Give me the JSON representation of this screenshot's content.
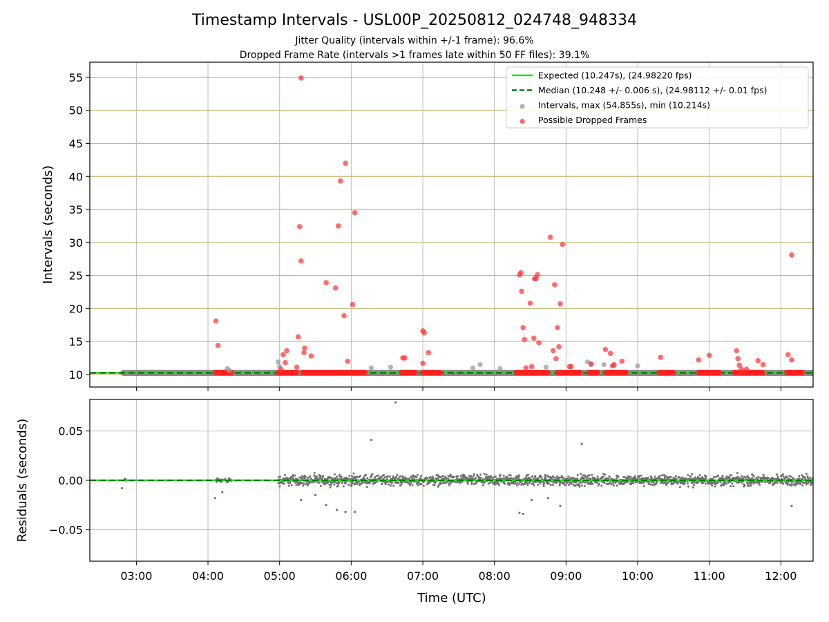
{
  "chart_data": [
    {
      "type": "scatter",
      "title": "Timestamp Intervals - USL00P_20250812_024748_948334",
      "subtitle_lines": [
        "Jitter Quality (intervals within +/-1 frame): 96.6%",
        "Dropped Frame Rate (intervals >1 frames late within 50 FF files): 39.1%"
      ],
      "ylabel": "Intervals (seconds)",
      "xlim": [
        2.35,
        12.45
      ],
      "ylim": [
        8.1,
        57.3
      ],
      "yticks": [
        10,
        15,
        20,
        25,
        30,
        35,
        40,
        45,
        50,
        55
      ],
      "ytick_labels": [
        "10",
        "15",
        "20",
        "25",
        "30",
        "35",
        "40",
        "45",
        "50",
        "55"
      ],
      "grid": "on",
      "legend_position": "top-right",
      "expected_interval": 10.247,
      "median_interval": 10.248,
      "legend": [
        {
          "label": "Expected (10.247s), (24.98220 fps)",
          "style": "solid-line",
          "color": "#22dd22"
        },
        {
          "label": "Median (10.248 +/- 0.006 s), (24.98112 +/- 0.01 fps)",
          "style": "dashed-line",
          "color": "#117711"
        },
        {
          "label": "Intervals, max (54.855s), min (10.214s)",
          "style": "marker",
          "color": "#999999"
        },
        {
          "label": "Possible Dropped Frames",
          "style": "marker",
          "color": "#ff3333"
        }
      ],
      "series": [
        {
          "name": "Intervals, max (54.855s), min (10.214s)",
          "x": [
            4.27,
            4.3,
            4.98,
            5.0,
            6.28,
            6.55,
            7.7,
            7.8,
            8.08,
            8.72,
            9.3,
            9.35,
            9.53,
            10.0
          ],
          "y": [
            10.9,
            10.6,
            11.9,
            11.2,
            11.0,
            11.1,
            11.0,
            11.5,
            10.9,
            11.1,
            11.9,
            11.5,
            11.5,
            11.3
          ]
        },
        {
          "name": "Possible Dropped Frames",
          "x": [
            4.11,
            4.14,
            5.02,
            5.05,
            5.08,
            5.1,
            5.24,
            5.26,
            5.28,
            5.3,
            5.35,
            5.44,
            5.3,
            5.34,
            5.65,
            5.78,
            5.82,
            5.85,
            5.9,
            5.92,
            5.95,
            6.02,
            6.05,
            6.72,
            6.75,
            7.0,
            7.02,
            7.08,
            7.0,
            8.35,
            8.37,
            8.38,
            8.4,
            8.42,
            8.44,
            8.5,
            8.52,
            8.55,
            8.56,
            8.58,
            8.6,
            8.62,
            8.78,
            8.82,
            8.84,
            8.86,
            8.88,
            8.9,
            8.92,
            8.95,
            9.05,
            9.07,
            9.35,
            9.55,
            9.62,
            9.65,
            9.67,
            9.78,
            10.32,
            10.85,
            11.0,
            11.38,
            11.4,
            11.42,
            11.45,
            11.52,
            11.68,
            11.75,
            12.1,
            12.15,
            12.15
          ],
          "y": [
            18.1,
            14.4,
            10.8,
            13.0,
            11.8,
            13.6,
            11.1,
            15.7,
            32.4,
            27.2,
            14.0,
            12.8,
            54.9,
            13.3,
            23.9,
            23.1,
            32.5,
            39.3,
            18.9,
            42.0,
            12.0,
            20.6,
            34.5,
            12.5,
            12.5,
            16.6,
            16.3,
            13.3,
            11.7,
            25.1,
            25.4,
            22.6,
            17.1,
            15.3,
            11.0,
            20.8,
            11.2,
            15.5,
            24.5,
            24.5,
            25.1,
            14.8,
            30.8,
            13.6,
            23.6,
            12.4,
            17.1,
            14.2,
            20.7,
            29.7,
            11.2,
            11.2,
            11.6,
            13.8,
            13.2,
            11.3,
            11.5,
            12.0,
            12.6,
            12.2,
            12.9,
            13.6,
            12.4,
            11.4,
            10.8,
            10.8,
            12.1,
            11.5,
            13.0,
            28.1,
            12.2
          ],
          "clusters": [
            [
              4.1,
              4.33
            ],
            [
              4.98,
              5.24
            ],
            [
              5.32,
              5.97
            ],
            [
              6.0,
              6.2
            ],
            [
              6.7,
              6.9
            ],
            [
              7.0,
              7.25
            ],
            [
              8.3,
              8.65
            ],
            [
              8.66,
              8.75
            ],
            [
              8.88,
              9.2
            ],
            [
              9.32,
              9.45
            ],
            [
              9.55,
              9.85
            ],
            [
              10.3,
              10.5
            ],
            [
              10.85,
              11.15
            ],
            [
              11.35,
              11.75
            ],
            [
              12.08,
              12.3
            ]
          ],
          "cluster_y": 10.3
        }
      ]
    },
    {
      "type": "scatter",
      "xlabel": "Time (UTC)",
      "ylabel": "Residuals (seconds)",
      "xlim": [
        2.35,
        12.45
      ],
      "ylim": [
        -0.082,
        0.082
      ],
      "xticks": [
        3,
        4,
        5,
        6,
        7,
        8,
        9,
        10,
        11,
        12
      ],
      "xtick_labels": [
        "03:00",
        "04:00",
        "05:00",
        "06:00",
        "07:00",
        "08:00",
        "09:00",
        "10:00",
        "11:00",
        "12:00"
      ],
      "yticks": [
        0.05,
        0.0,
        -0.05
      ],
      "ytick_labels": [
        "0.05",
        "0.00",
        "−0.05"
      ],
      "grid": "on",
      "reference_line": 0.0,
      "series": [
        {
          "name": "residuals",
          "dense_segments": [
            {
              "x": [
                2.82,
                2.86
              ],
              "spread": 0.003
            },
            {
              "x": [
                4.1,
                4.33
              ],
              "spread": 0.004
            },
            {
              "x": [
                4.98,
                12.45
              ],
              "spread": 0.008
            }
          ],
          "outliers_x": [
            2.8,
            4.1,
            4.2,
            5.3,
            5.5,
            5.65,
            5.8,
            5.92,
            6.05,
            6.28,
            6.62,
            8.35,
            8.4,
            8.52,
            8.75,
            8.92,
            9.22,
            12.15
          ],
          "outliers_y": [
            -0.008,
            -0.018,
            -0.012,
            -0.02,
            -0.015,
            -0.025,
            -0.03,
            -0.032,
            -0.032,
            0.041,
            0.079,
            -0.033,
            -0.034,
            -0.02,
            -0.018,
            -0.026,
            0.037,
            -0.026
          ]
        }
      ]
    }
  ]
}
